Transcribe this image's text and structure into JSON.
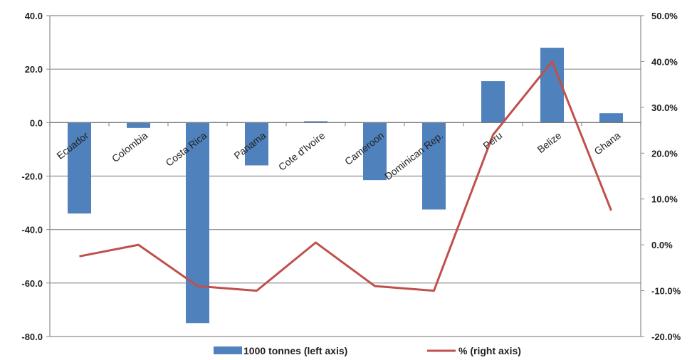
{
  "chart_data": {
    "type": "bar",
    "categories": [
      "Ecuador",
      "Colombia",
      "Costa Rica",
      "Panama",
      "Cote d'Ivoire",
      "Cameroon",
      "Dominican Rep.",
      "Peru",
      "Belize",
      "Ghana"
    ],
    "series": [
      {
        "name": "1000 tonnes (left axis)",
        "type": "bar",
        "axis": "left",
        "color": "#4f81bd",
        "values": [
          -34.0,
          -2.0,
          -75.0,
          -16.0,
          0.5,
          -21.5,
          -32.5,
          15.5,
          28.0,
          3.5
        ]
      },
      {
        "name": "% (right axis)",
        "type": "line",
        "axis": "right",
        "color": "#c0504d",
        "values": [
          -2.5,
          0.0,
          -9.0,
          -10.0,
          0.5,
          -9.0,
          -10.0,
          24.0,
          40.0,
          7.5
        ]
      }
    ],
    "left_axis": {
      "ylim": [
        -80,
        40
      ],
      "ticks": [
        40,
        20,
        0,
        -20,
        -40,
        -60,
        -80
      ],
      "tick_labels": [
        "40.0",
        "20.0",
        "0.0",
        "-20.0",
        "-40.0",
        "-60.0",
        "-80.0"
      ]
    },
    "right_axis": {
      "ylim": [
        -20,
        50
      ],
      "tick_labels": [
        "50.0%",
        "40.0%",
        "30.0%",
        "20.0%",
        "10.0%",
        "0.0%",
        "-10.0%",
        "-20.0%"
      ]
    },
    "grid": true,
    "legend_position": "bottom"
  }
}
